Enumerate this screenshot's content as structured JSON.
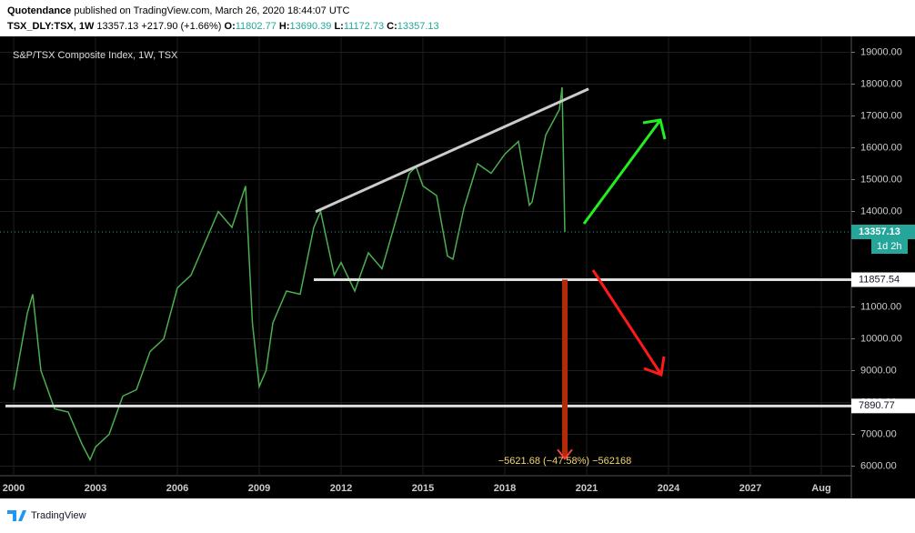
{
  "header": {
    "author": "Quotendance",
    "published": "published on TradingView.com, March 26, 2020 18:44:07 UTC",
    "symbol": "TSX_DLY:TSX, 1W",
    "last": "13357.13",
    "change": "+217.90 (+1.66%)",
    "o_label": "O:",
    "o": "11802.77",
    "h_label": "H:",
    "h": "13690.39",
    "l_label": "L:",
    "l": "11172.73",
    "c_label": "C:",
    "c": "13357.13"
  },
  "chart_data": {
    "type": "line",
    "title": "S&P/TSX Composite Index, 1W, TSX",
    "x": [
      2000.0,
      2000.5,
      2000.7,
      2001.0,
      2001.5,
      2002.0,
      2002.5,
      2002.8,
      2003.0,
      2003.5,
      2004.0,
      2004.5,
      2005.0,
      2005.5,
      2006.0,
      2006.5,
      2007.0,
      2007.5,
      2008.0,
      2008.5,
      2008.75,
      2009.0,
      2009.25,
      2009.5,
      2010.0,
      2010.5,
      2011.0,
      2011.25,
      2011.75,
      2012.0,
      2012.5,
      2013.0,
      2013.5,
      2014.0,
      2014.5,
      2014.75,
      2015.0,
      2015.5,
      2015.9,
      2016.1,
      2016.5,
      2017.0,
      2017.5,
      2018.0,
      2018.5,
      2018.9,
      2019.0,
      2019.5,
      2020.0,
      2020.1,
      2020.2
    ],
    "series": [
      {
        "name": "TSX",
        "color": "#4caf50",
        "values": [
          8400,
          10800,
          11400,
          9000,
          7800,
          7700,
          6700,
          6200,
          6600,
          7000,
          8200,
          8400,
          9600,
          10000,
          11600,
          12000,
          13000,
          14000,
          13500,
          14800,
          10500,
          8500,
          9000,
          10500,
          11500,
          11400,
          13500,
          14000,
          12000,
          12400,
          11500,
          12700,
          12200,
          13700,
          15200,
          15400,
          14800,
          14500,
          12600,
          12500,
          14100,
          15500,
          15200,
          15800,
          16200,
          14200,
          14300,
          16400,
          17200,
          17900,
          13357.13
        ]
      }
    ],
    "xlim": [
      1999.5,
      2030.7
    ],
    "ylim": [
      5700,
      19500
    ],
    "xticks": [
      2000,
      2003,
      2006,
      2009,
      2012,
      2015,
      2018,
      2021,
      2024,
      2027,
      {
        "value": 2029.6,
        "label": "Aug"
      }
    ],
    "yticks": [
      {
        "value": 6000,
        "label": "6000.00"
      },
      {
        "value": 7000,
        "label": "7000.00"
      },
      {
        "value": 8000,
        "label": "8000.00"
      },
      {
        "value": 9000,
        "label": "9000.00"
      },
      {
        "value": 10000,
        "label": "10000.00"
      },
      {
        "value": 11000,
        "label": "11000.00"
      },
      {
        "value": 14000,
        "label": "14000.00"
      },
      {
        "value": 15000,
        "label": "15000.00"
      },
      {
        "value": 16000,
        "label": "16000.00"
      },
      {
        "value": 17000,
        "label": "17000.00"
      },
      {
        "value": 18000,
        "label": "18000.00"
      },
      {
        "value": 19000,
        "label": "19000.00"
      }
    ],
    "grid": true,
    "current_price": {
      "value": 13357.13,
      "label": "13357.13",
      "countdown": "1d 2h",
      "color": "#26a69a"
    },
    "levels": [
      {
        "value": 11857.54,
        "label": "11857.54",
        "from": 2011.0
      },
      {
        "value": 7890.77,
        "label": "7890.77",
        "from": 1999.7
      }
    ],
    "trend_line": {
      "x": [
        2011.07,
        2021.07
      ],
      "values": [
        13993,
        17850
      ]
    },
    "measure": {
      "x": 2020.2,
      "change": -5621.68,
      "label": "−5621.68 (−47.58%) −562168"
    }
  },
  "footer": {
    "brand": "TradingView"
  }
}
